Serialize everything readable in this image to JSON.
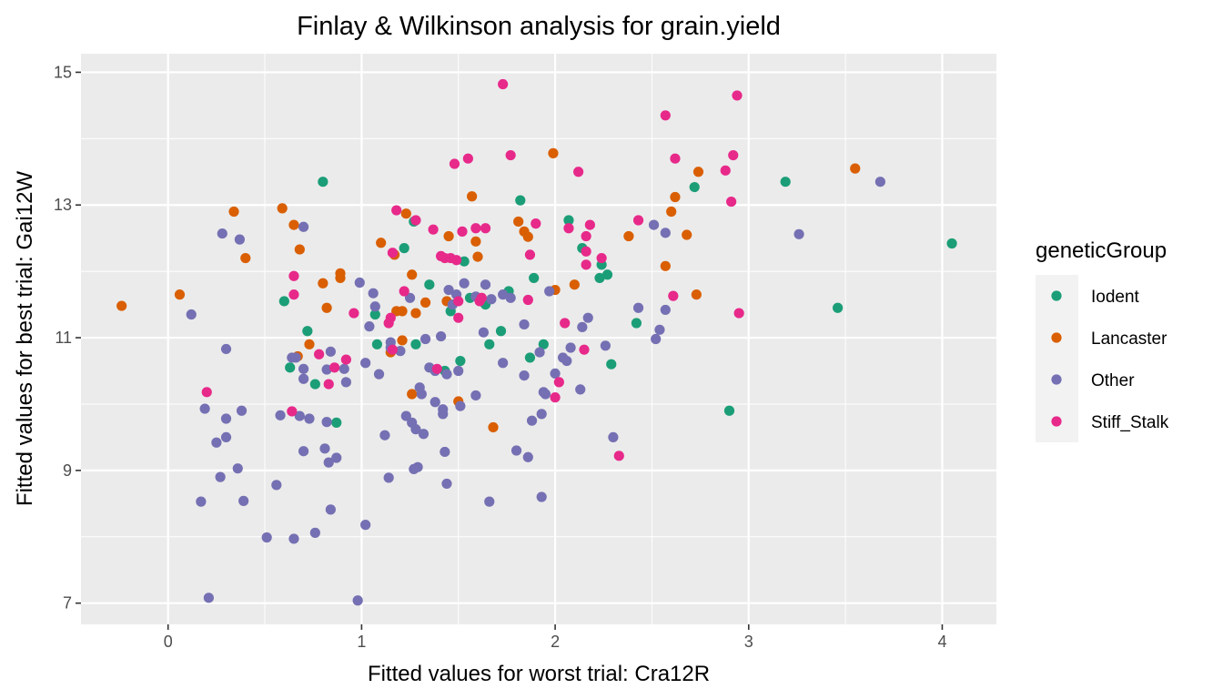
{
  "chart_data": {
    "type": "scatter",
    "title": "Finlay & Wilkinson analysis for grain.yield",
    "xlabel": "Fitted values for worst trial: Cra12R",
    "ylabel": "Fitted values for best trial: Gai12W",
    "xlim": [
      -0.45,
      4.28
    ],
    "ylim": [
      6.68,
      15.28
    ],
    "x_ticks": [
      0,
      1,
      2,
      3,
      4
    ],
    "y_ticks": [
      7,
      9,
      11,
      13,
      15
    ],
    "grid": true,
    "legend": {
      "title": "geneticGroup",
      "placement": "right"
    },
    "series": [
      {
        "name": "Iodent",
        "color": "#1B9E77",
        "points": [
          [
            0.8,
            13.35
          ],
          [
            0.6,
            11.55
          ],
          [
            0.72,
            11.1
          ],
          [
            0.63,
            10.55
          ],
          [
            0.76,
            10.3
          ],
          [
            0.87,
            9.72
          ],
          [
            1.07,
            11.35
          ],
          [
            1.08,
            10.9
          ],
          [
            1.22,
            12.35
          ],
          [
            1.27,
            12.75
          ],
          [
            1.35,
            11.8
          ],
          [
            1.28,
            10.9
          ],
          [
            1.46,
            11.4
          ],
          [
            1.53,
            12.15
          ],
          [
            1.56,
            11.6
          ],
          [
            1.51,
            10.65
          ],
          [
            1.43,
            10.5
          ],
          [
            1.64,
            11.5
          ],
          [
            1.66,
            10.9
          ],
          [
            1.72,
            11.1
          ],
          [
            1.76,
            11.7
          ],
          [
            1.82,
            13.07
          ],
          [
            1.89,
            11.9
          ],
          [
            1.87,
            10.7
          ],
          [
            1.94,
            10.9
          ],
          [
            2.07,
            12.77
          ],
          [
            2.14,
            12.35
          ],
          [
            2.23,
            11.9
          ],
          [
            2.24,
            12.1
          ],
          [
            2.27,
            11.95
          ],
          [
            2.29,
            10.6
          ],
          [
            2.42,
            11.22
          ],
          [
            2.72,
            13.27
          ],
          [
            2.9,
            9.9
          ],
          [
            3.19,
            13.35
          ],
          [
            3.46,
            11.45
          ],
          [
            4.05,
            12.42
          ]
        ]
      },
      {
        "name": "Lancaster",
        "color": "#D95F02",
        "points": [
          [
            -0.24,
            11.48
          ],
          [
            0.06,
            11.65
          ],
          [
            0.34,
            12.9
          ],
          [
            0.4,
            12.2
          ],
          [
            0.59,
            12.95
          ],
          [
            0.65,
            12.7
          ],
          [
            0.68,
            12.33
          ],
          [
            0.67,
            10.72
          ],
          [
            0.73,
            10.9
          ],
          [
            0.8,
            11.82
          ],
          [
            0.82,
            11.45
          ],
          [
            0.89,
            11.9
          ],
          [
            0.89,
            11.97
          ],
          [
            1.1,
            12.43
          ],
          [
            1.15,
            10.78
          ],
          [
            1.17,
            12.25
          ],
          [
            1.18,
            11.4
          ],
          [
            1.21,
            11.4
          ],
          [
            1.21,
            10.96
          ],
          [
            1.23,
            12.87
          ],
          [
            1.26,
            11.95
          ],
          [
            1.26,
            10.15
          ],
          [
            1.28,
            11.37
          ],
          [
            1.33,
            11.53
          ],
          [
            1.44,
            11.55
          ],
          [
            1.45,
            12.53
          ],
          [
            1.5,
            10.04
          ],
          [
            1.57,
            13.13
          ],
          [
            1.59,
            12.45
          ],
          [
            1.6,
            12.22
          ],
          [
            1.62,
            11.6
          ],
          [
            1.68,
            9.65
          ],
          [
            1.81,
            12.75
          ],
          [
            1.84,
            12.6
          ],
          [
            1.86,
            12.52
          ],
          [
            1.99,
            13.78
          ],
          [
            2.0,
            11.72
          ],
          [
            2.1,
            11.8
          ],
          [
            2.38,
            12.53
          ],
          [
            2.57,
            12.08
          ],
          [
            2.6,
            12.9
          ],
          [
            2.62,
            13.12
          ],
          [
            2.68,
            12.55
          ],
          [
            2.73,
            11.65
          ],
          [
            2.74,
            13.5
          ],
          [
            3.55,
            13.55
          ]
        ]
      },
      {
        "name": "Other",
        "color": "#7570B3",
        "points": [
          [
            0.12,
            11.35
          ],
          [
            0.17,
            8.53
          ],
          [
            0.19,
            9.93
          ],
          [
            0.21,
            7.08
          ],
          [
            0.25,
            9.42
          ],
          [
            0.27,
            8.9
          ],
          [
            0.28,
            12.57
          ],
          [
            0.3,
            10.83
          ],
          [
            0.3,
            9.78
          ],
          [
            0.3,
            9.5
          ],
          [
            0.36,
            9.03
          ],
          [
            0.37,
            12.48
          ],
          [
            0.38,
            9.9
          ],
          [
            0.39,
            8.54
          ],
          [
            0.51,
            7.99
          ],
          [
            0.56,
            8.78
          ],
          [
            0.58,
            9.83
          ],
          [
            0.64,
            10.7
          ],
          [
            0.65,
            7.97
          ],
          [
            0.66,
            10.7
          ],
          [
            0.68,
            9.82
          ],
          [
            0.7,
            10.53
          ],
          [
            0.7,
            10.38
          ],
          [
            0.7,
            9.29
          ],
          [
            0.7,
            12.67
          ],
          [
            0.73,
            9.78
          ],
          [
            0.76,
            8.06
          ],
          [
            0.81,
            9.33
          ],
          [
            0.82,
            9.73
          ],
          [
            0.82,
            10.52
          ],
          [
            0.83,
            9.12
          ],
          [
            0.84,
            8.41
          ],
          [
            0.87,
            9.19
          ],
          [
            0.84,
            10.79
          ],
          [
            0.91,
            10.53
          ],
          [
            0.92,
            10.33
          ],
          [
            0.98,
            7.04
          ],
          [
            0.99,
            11.83
          ],
          [
            1.02,
            8.18
          ],
          [
            1.02,
            10.62
          ],
          [
            1.04,
            11.17
          ],
          [
            1.06,
            11.67
          ],
          [
            1.07,
            11.47
          ],
          [
            1.09,
            10.45
          ],
          [
            1.12,
            9.53
          ],
          [
            1.14,
            8.89
          ],
          [
            1.15,
            10.85
          ],
          [
            1.15,
            10.93
          ],
          [
            1.2,
            10.8
          ],
          [
            1.23,
            9.82
          ],
          [
            1.26,
            9.72
          ],
          [
            1.25,
            11.6
          ],
          [
            1.27,
            9.02
          ],
          [
            1.28,
            9.62
          ],
          [
            1.29,
            9.05
          ],
          [
            1.3,
            10.25
          ],
          [
            1.31,
            10.15
          ],
          [
            1.32,
            9.55
          ],
          [
            1.33,
            10.98
          ],
          [
            1.35,
            10.55
          ],
          [
            1.38,
            10.03
          ],
          [
            1.38,
            10.5
          ],
          [
            1.41,
            11.02
          ],
          [
            1.42,
            9.92
          ],
          [
            1.42,
            9.85
          ],
          [
            1.43,
            9.28
          ],
          [
            1.44,
            8.8
          ],
          [
            1.44,
            10.45
          ],
          [
            1.45,
            11.72
          ],
          [
            1.47,
            11.5
          ],
          [
            1.49,
            11.65
          ],
          [
            1.5,
            10.5
          ],
          [
            1.51,
            9.97
          ],
          [
            1.53,
            11.82
          ],
          [
            1.59,
            10.13
          ],
          [
            1.59,
            11.62
          ],
          [
            1.63,
            11.08
          ],
          [
            1.64,
            11.8
          ],
          [
            1.66,
            8.53
          ],
          [
            1.67,
            11.58
          ],
          [
            1.73,
            10.62
          ],
          [
            1.73,
            11.65
          ],
          [
            1.77,
            11.6
          ],
          [
            1.8,
            9.3
          ],
          [
            1.84,
            10.43
          ],
          [
            1.84,
            11.2
          ],
          [
            1.86,
            9.2
          ],
          [
            1.88,
            9.75
          ],
          [
            1.92,
            10.78
          ],
          [
            1.93,
            8.6
          ],
          [
            1.93,
            9.85
          ],
          [
            1.94,
            10.18
          ],
          [
            1.95,
            10.15
          ],
          [
            1.97,
            11.7
          ],
          [
            2.0,
            10.46
          ],
          [
            2.04,
            10.7
          ],
          [
            2.06,
            10.65
          ],
          [
            2.08,
            10.85
          ],
          [
            2.13,
            10.22
          ],
          [
            2.14,
            11.16
          ],
          [
            2.17,
            11.3
          ],
          [
            2.26,
            10.88
          ],
          [
            2.3,
            9.5
          ],
          [
            2.43,
            11.45
          ],
          [
            2.51,
            12.7
          ],
          [
            2.52,
            10.98
          ],
          [
            2.54,
            11.12
          ],
          [
            2.57,
            12.58
          ],
          [
            2.57,
            11.42
          ],
          [
            3.26,
            12.56
          ],
          [
            3.68,
            13.35
          ]
        ]
      },
      {
        "name": "Stiff_Stalk",
        "color": "#E7298A",
        "points": [
          [
            0.2,
            10.18
          ],
          [
            0.64,
            9.89
          ],
          [
            0.65,
            11.65
          ],
          [
            0.65,
            11.93
          ],
          [
            0.78,
            10.75
          ],
          [
            0.83,
            10.3
          ],
          [
            0.86,
            10.55
          ],
          [
            0.92,
            10.67
          ],
          [
            0.96,
            11.37
          ],
          [
            1.14,
            11.22
          ],
          [
            1.15,
            11.3
          ],
          [
            1.16,
            10.82
          ],
          [
            1.16,
            12.28
          ],
          [
            1.18,
            12.92
          ],
          [
            1.22,
            11.7
          ],
          [
            1.28,
            12.77
          ],
          [
            1.37,
            12.63
          ],
          [
            1.39,
            10.53
          ],
          [
            1.41,
            12.23
          ],
          [
            1.43,
            12.2
          ],
          [
            1.46,
            12.2
          ],
          [
            1.48,
            13.62
          ],
          [
            1.49,
            12.17
          ],
          [
            1.5,
            11.3
          ],
          [
            1.5,
            11.55
          ],
          [
            1.52,
            12.6
          ],
          [
            1.55,
            13.7
          ],
          [
            1.59,
            12.65
          ],
          [
            1.61,
            11.55
          ],
          [
            1.62,
            11.6
          ],
          [
            1.64,
            12.65
          ],
          [
            1.73,
            14.82
          ],
          [
            1.77,
            13.75
          ],
          [
            1.86,
            11.57
          ],
          [
            1.87,
            12.25
          ],
          [
            1.9,
            12.72
          ],
          [
            2.0,
            10.1
          ],
          [
            2.02,
            10.33
          ],
          [
            2.05,
            11.22
          ],
          [
            2.07,
            12.65
          ],
          [
            2.12,
            13.5
          ],
          [
            2.15,
            10.82
          ],
          [
            2.16,
            12.3
          ],
          [
            2.16,
            12.1
          ],
          [
            2.16,
            12.53
          ],
          [
            2.18,
            12.7
          ],
          [
            2.24,
            12.2
          ],
          [
            2.33,
            9.22
          ],
          [
            2.43,
            12.77
          ],
          [
            2.57,
            14.35
          ],
          [
            2.61,
            11.63
          ],
          [
            2.62,
            13.7
          ],
          [
            2.88,
            13.52
          ],
          [
            2.91,
            13.05
          ],
          [
            2.92,
            13.75
          ],
          [
            2.94,
            14.65
          ],
          [
            2.95,
            11.37
          ]
        ]
      }
    ]
  }
}
